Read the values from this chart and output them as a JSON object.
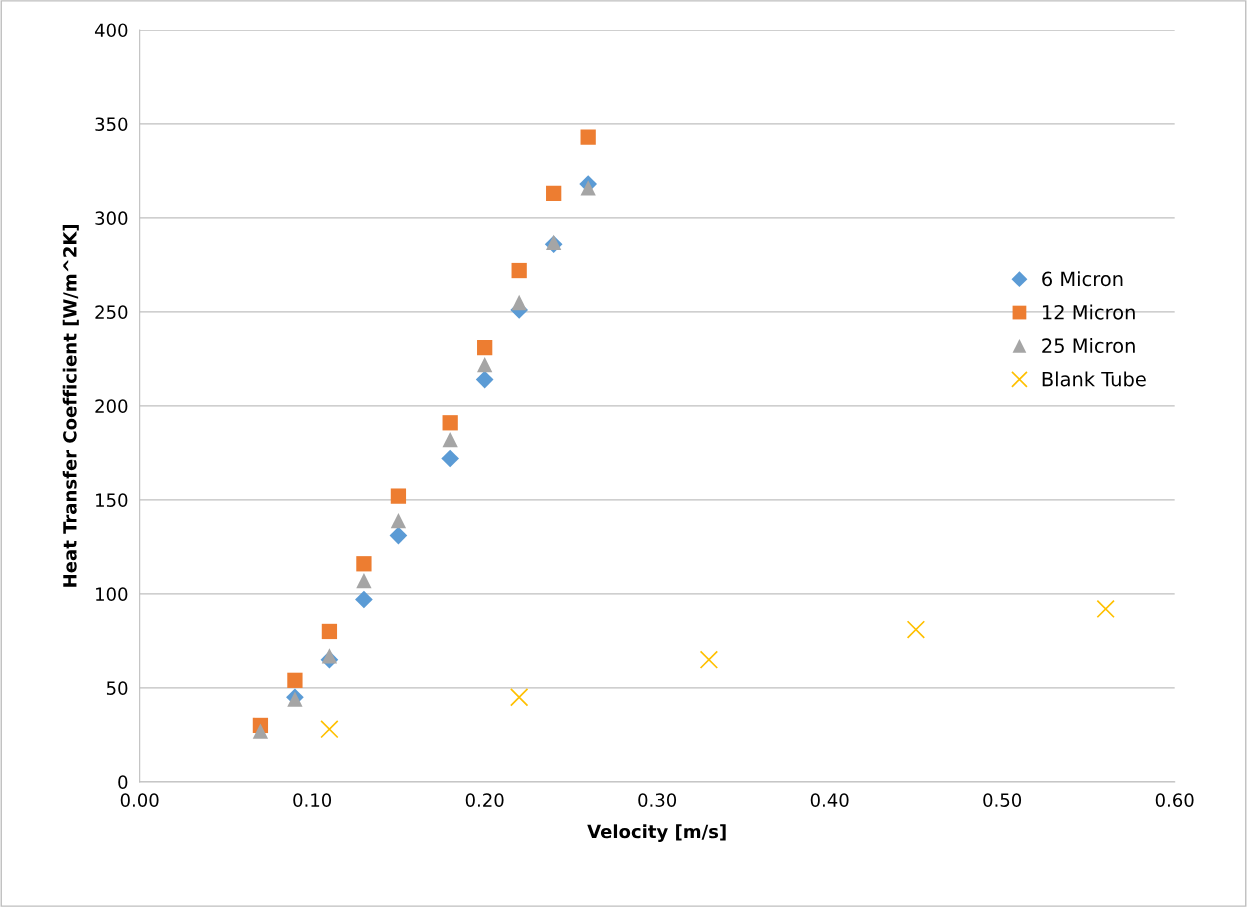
{
  "chart_data": {
    "type": "scatter",
    "xlabel": "Velocity [m/s]",
    "ylabel": "Heat Transfer Coefficient [W/m^2K]",
    "xlim": [
      0,
      0.6
    ],
    "ylim": [
      0,
      400
    ],
    "xticks": [
      {
        "value": 0,
        "label": "0.00"
      },
      {
        "value": 0.1,
        "label": "0.10"
      },
      {
        "value": 0.2,
        "label": "0.20"
      },
      {
        "value": 0.3,
        "label": "0.30"
      },
      {
        "value": 0.4,
        "label": "0.40"
      },
      {
        "value": 0.5,
        "label": "0.50"
      },
      {
        "value": 0.6,
        "label": "0.60"
      }
    ],
    "yticks": [
      0,
      50,
      100,
      150,
      200,
      250,
      300,
      350,
      400
    ],
    "grid": "y",
    "legend": "right",
    "series": [
      {
        "name": "6 Micron",
        "color": "#5b9bd5",
        "marker": "diamond",
        "x": [
          0.09,
          0.11,
          0.13,
          0.15,
          0.18,
          0.2,
          0.22,
          0.24,
          0.26
        ],
        "values": [
          45,
          65,
          97,
          131,
          172,
          214,
          251,
          286,
          318
        ]
      },
      {
        "name": "12 Micron",
        "color": "#ed7d31",
        "marker": "square",
        "x": [
          0.07,
          0.09,
          0.11,
          0.13,
          0.15,
          0.18,
          0.2,
          0.22,
          0.24,
          0.26
        ],
        "values": [
          30,
          54,
          80,
          116,
          152,
          191,
          231,
          272,
          313,
          343
        ]
      },
      {
        "name": "25 Micron",
        "color": "#a5a5a5",
        "marker": "triangle",
        "x": [
          0.07,
          0.09,
          0.11,
          0.13,
          0.15,
          0.18,
          0.2,
          0.22,
          0.24,
          0.26
        ],
        "values": [
          27,
          44,
          67,
          107,
          139,
          182,
          222,
          255,
          287,
          316
        ]
      },
      {
        "name": "Blank Tube",
        "color": "#ffc000",
        "marker": "cross",
        "x": [
          0.11,
          0.22,
          0.33,
          0.45,
          0.56
        ],
        "values": [
          28,
          45,
          65,
          81,
          92
        ]
      }
    ]
  }
}
